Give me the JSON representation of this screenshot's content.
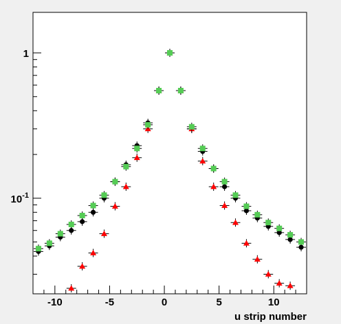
{
  "chart_data": {
    "type": "scatter",
    "title": "",
    "xlabel": "u strip number",
    "ylabel": "",
    "xlim": [
      -12,
      13
    ],
    "ylim": [
      0.022,
      1.9
    ],
    "yscale": "log",
    "grid": false,
    "legend": "none",
    "x_ticks": [
      {
        "value": -10,
        "label": "-10"
      },
      {
        "value": -5,
        "label": "-5"
      },
      {
        "value": 0,
        "label": "0"
      },
      {
        "value": 5,
        "label": "5"
      },
      {
        "value": 10,
        "label": "10"
      }
    ],
    "y_ticks": [
      {
        "value": 1,
        "label": "1",
        "sup": ""
      },
      {
        "value": 0.1,
        "label": "10",
        "sup": "-1"
      }
    ],
    "series": [
      {
        "marker": "circle",
        "color": "#000000",
        "x": [
          -11.5,
          -10.5,
          -9.5,
          -8.5,
          -7.5,
          -6.5,
          -5.5,
          -4.5,
          -3.5,
          -2.5,
          -1.5,
          -0.5,
          0.5,
          1.5,
          2.5,
          3.5,
          4.5,
          5.5,
          6.5,
          7.5,
          8.5,
          9.5,
          10.5,
          11.5,
          12.5
        ],
        "y": [
          0.043,
          0.047,
          0.054,
          0.06,
          0.069,
          0.08,
          0.1,
          0.13,
          0.17,
          0.23,
          0.33,
          0.55,
          1.0,
          0.55,
          0.3,
          0.21,
          0.16,
          0.12,
          0.1,
          0.082,
          0.073,
          0.064,
          0.058,
          0.052,
          0.046
        ]
      },
      {
        "marker": "triangle",
        "color": "#ff0000",
        "x": [
          -8.5,
          -7.5,
          -6.5,
          -5.5,
          -4.5,
          -3.5,
          -2.5,
          -1.5,
          -0.5,
          0.5,
          1.5,
          2.5,
          3.5,
          4.5,
          5.5,
          6.5,
          7.5,
          8.5,
          9.5,
          10.5,
          11.5
        ],
        "y": [
          0.024,
          0.034,
          0.042,
          0.057,
          0.088,
          0.12,
          0.19,
          0.3,
          0.55,
          1.0,
          0.55,
          0.3,
          0.18,
          0.12,
          0.089,
          0.068,
          0.049,
          0.038,
          0.03,
          0.026,
          0.025
        ]
      },
      {
        "marker": "square",
        "color": "#55cc55",
        "x": [
          -11.5,
          -10.5,
          -9.5,
          -8.5,
          -7.5,
          -6.5,
          -5.5,
          -4.5,
          -3.5,
          -2.5,
          -1.5,
          -0.5,
          0.5,
          1.5,
          2.5,
          3.5,
          4.5,
          5.5,
          6.5,
          7.5,
          8.5,
          9.5,
          10.5,
          11.5,
          12.5
        ],
        "y": [
          0.045,
          0.049,
          0.057,
          0.066,
          0.076,
          0.089,
          0.105,
          0.13,
          0.165,
          0.22,
          0.32,
          0.55,
          1.0,
          0.55,
          0.31,
          0.22,
          0.16,
          0.13,
          0.105,
          0.088,
          0.077,
          0.068,
          0.062,
          0.056,
          0.05
        ]
      }
    ]
  }
}
